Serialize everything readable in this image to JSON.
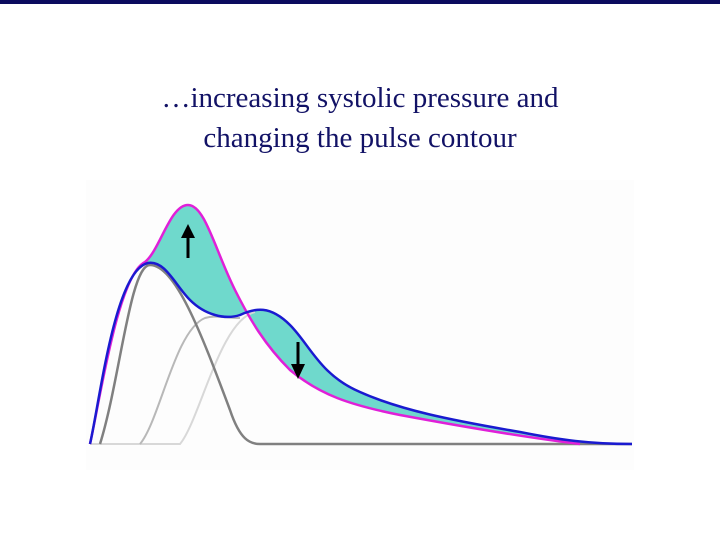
{
  "title_lines": [
    "…increasing systolic pressure and",
    "changing the pulse contour"
  ]
}
